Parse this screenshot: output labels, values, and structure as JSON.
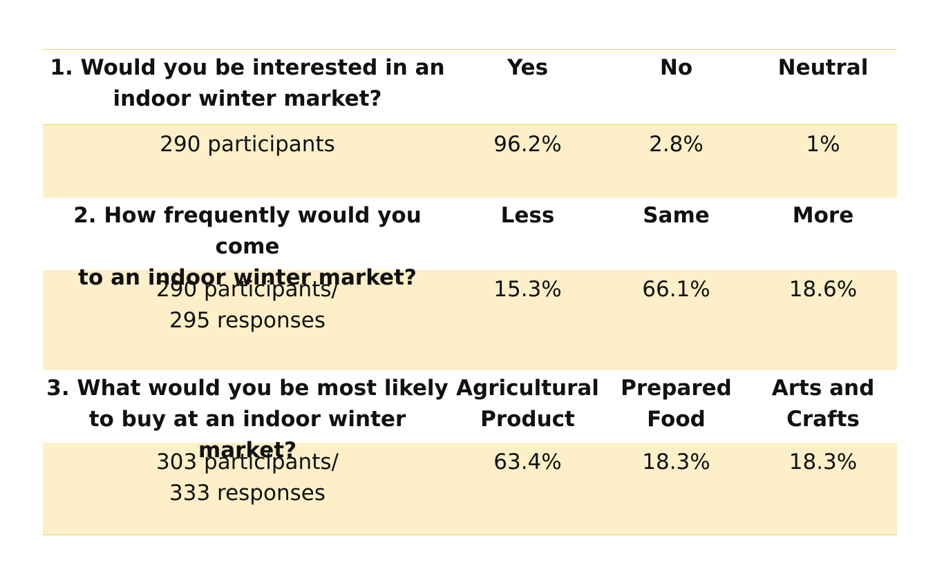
{
  "questions": [
    {
      "question_lines": [
        "1. Would you be interested in an",
        "indoor winter market?"
      ],
      "options": [
        [
          "Yes"
        ],
        [
          "No"
        ],
        [
          "Neutral"
        ]
      ],
      "participant_lines": [
        "290 participants"
      ],
      "results": [
        "96.2%",
        "2.8%",
        "1%"
      ]
    },
    {
      "question_lines": [
        "2. How frequently would you come",
        "to an indoor winter market?"
      ],
      "options": [
        [
          "Less"
        ],
        [
          "Same"
        ],
        [
          "More"
        ]
      ],
      "participant_lines": [
        "290 participants/",
        "295 responses"
      ],
      "results": [
        "15.3%",
        "66.1%",
        "18.6%"
      ]
    },
    {
      "question_lines": [
        "3. What would you be most likely",
        "to buy at an indoor winter market?"
      ],
      "options": [
        [
          "Agricultural",
          "Product"
        ],
        [
          "Prepared",
          "Food"
        ],
        [
          "Arts and",
          "Crafts"
        ]
      ],
      "participant_lines": [
        "303 participants/",
        "333 responses"
      ],
      "results": [
        "63.4%",
        "18.3%",
        "18.3%"
      ]
    }
  ],
  "colors": {
    "row_fill": "#fdf0c9",
    "rule": "#f2cf4b",
    "text": "#111111"
  }
}
